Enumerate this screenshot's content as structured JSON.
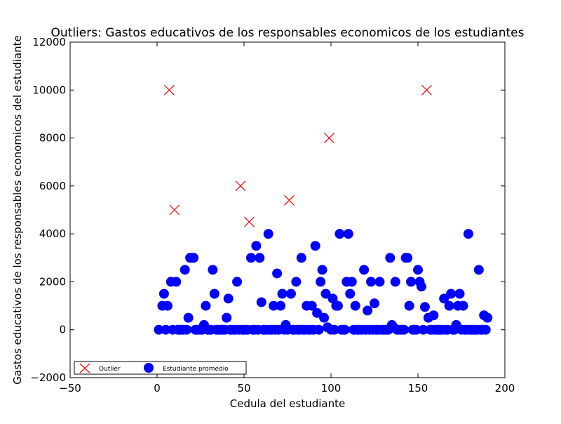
{
  "chart_data": {
    "type": "scatter",
    "title": "Outliers: Gastos educativos de los responsables economicos de los estudiantes",
    "xlabel": "Cedula del estudiante",
    "ylabel": "Gastos educativos de los responsables economicos del estudiante",
    "xlim": [
      -50,
      200
    ],
    "ylim": [
      -2000,
      12000
    ],
    "xticks": [
      -50,
      0,
      50,
      100,
      150,
      200
    ],
    "yticks": [
      -2000,
      0,
      2000,
      4000,
      6000,
      8000,
      10000,
      12000
    ],
    "grid": false,
    "legend_position": "lower-left",
    "series": [
      {
        "name": "Outlier",
        "marker": "x",
        "color": "#ff0000",
        "points": [
          [
            7,
            10000
          ],
          [
            10,
            5000
          ],
          [
            48,
            6000
          ],
          [
            53,
            4500
          ],
          [
            76,
            5400
          ],
          [
            99,
            8000
          ],
          [
            155,
            10000
          ]
        ]
      },
      {
        "name": "Estudiante promedio",
        "marker": "circle",
        "color": "#0000ff",
        "points": [
          [
            1,
            0
          ],
          [
            3,
            1000
          ],
          [
            4,
            1500
          ],
          [
            5,
            0
          ],
          [
            6,
            1000
          ],
          [
            8,
            2000
          ],
          [
            9,
            0
          ],
          [
            11,
            2000
          ],
          [
            12,
            0
          ],
          [
            13,
            0
          ],
          [
            14,
            0
          ],
          [
            15,
            0
          ],
          [
            16,
            2500
          ],
          [
            17,
            0
          ],
          [
            18,
            500
          ],
          [
            19,
            3000
          ],
          [
            20,
            3000
          ],
          [
            21,
            3000
          ],
          [
            22,
            0
          ],
          [
            23,
            0
          ],
          [
            24,
            0
          ],
          [
            25,
            0
          ],
          [
            26,
            0
          ],
          [
            27,
            200
          ],
          [
            28,
            1000
          ],
          [
            29,
            0
          ],
          [
            30,
            0
          ],
          [
            31,
            0
          ],
          [
            32,
            2500
          ],
          [
            33,
            1500
          ],
          [
            34,
            0
          ],
          [
            35,
            0
          ],
          [
            36,
            0
          ],
          [
            37,
            0
          ],
          [
            38,
            0
          ],
          [
            39,
            0
          ],
          [
            40,
            500
          ],
          [
            41,
            1300
          ],
          [
            42,
            0
          ],
          [
            43,
            0
          ],
          [
            44,
            0
          ],
          [
            45,
            0
          ],
          [
            46,
            2000
          ],
          [
            47,
            0
          ],
          [
            49,
            0
          ],
          [
            50,
            0
          ],
          [
            51,
            0
          ],
          [
            52,
            0
          ],
          [
            54,
            3000
          ],
          [
            55,
            0
          ],
          [
            56,
            0
          ],
          [
            57,
            3500
          ],
          [
            58,
            0
          ],
          [
            59,
            3000
          ],
          [
            60,
            1150
          ],
          [
            61,
            0
          ],
          [
            62,
            0
          ],
          [
            63,
            0
          ],
          [
            64,
            4000
          ],
          [
            65,
            0
          ],
          [
            66,
            0
          ],
          [
            67,
            1000
          ],
          [
            68,
            0
          ],
          [
            69,
            2350
          ],
          [
            70,
            0
          ],
          [
            71,
            1000
          ],
          [
            72,
            1500
          ],
          [
            73,
            0
          ],
          [
            74,
            200
          ],
          [
            75,
            0
          ],
          [
            77,
            1500
          ],
          [
            78,
            0
          ],
          [
            79,
            0
          ],
          [
            80,
            2000
          ],
          [
            81,
            0
          ],
          [
            82,
            0
          ],
          [
            83,
            3000
          ],
          [
            84,
            0
          ],
          [
            85,
            0
          ],
          [
            86,
            1000
          ],
          [
            87,
            0
          ],
          [
            88,
            0
          ],
          [
            89,
            1000
          ],
          [
            90,
            0
          ],
          [
            91,
            3500
          ],
          [
            92,
            700
          ],
          [
            93,
            0
          ],
          [
            94,
            2000
          ],
          [
            95,
            2500
          ],
          [
            96,
            500
          ],
          [
            97,
            1500
          ],
          [
            98,
            100
          ],
          [
            100,
            0
          ],
          [
            101,
            1300
          ],
          [
            102,
            0
          ],
          [
            103,
            1000
          ],
          [
            104,
            1000
          ],
          [
            105,
            4000
          ],
          [
            106,
            0
          ],
          [
            107,
            0
          ],
          [
            108,
            0
          ],
          [
            109,
            2000
          ],
          [
            110,
            4000
          ],
          [
            111,
            1500
          ],
          [
            112,
            2000
          ],
          [
            113,
            0
          ],
          [
            114,
            1000
          ],
          [
            115,
            0
          ],
          [
            116,
            0
          ],
          [
            117,
            0
          ],
          [
            118,
            0
          ],
          [
            119,
            2500
          ],
          [
            120,
            0
          ],
          [
            121,
            800
          ],
          [
            122,
            0
          ],
          [
            123,
            2000
          ],
          [
            124,
            0
          ],
          [
            125,
            1100
          ],
          [
            126,
            0
          ],
          [
            127,
            0
          ],
          [
            128,
            2000
          ],
          [
            129,
            0
          ],
          [
            130,
            0
          ],
          [
            131,
            0
          ],
          [
            132,
            0
          ],
          [
            133,
            0
          ],
          [
            134,
            3000
          ],
          [
            135,
            200
          ],
          [
            136,
            100
          ],
          [
            137,
            2000
          ],
          [
            138,
            0
          ],
          [
            139,
            0
          ],
          [
            140,
            0
          ],
          [
            141,
            0
          ],
          [
            142,
            0
          ],
          [
            143,
            3000
          ],
          [
            144,
            3000
          ],
          [
            145,
            1000
          ],
          [
            146,
            2000
          ],
          [
            147,
            0
          ],
          [
            148,
            0
          ],
          [
            149,
            0
          ],
          [
            150,
            2500
          ],
          [
            151,
            2000
          ],
          [
            152,
            1800
          ],
          [
            153,
            0
          ],
          [
            154,
            950
          ],
          [
            156,
            500
          ],
          [
            157,
            0
          ],
          [
            158,
            0
          ],
          [
            159,
            600
          ],
          [
            160,
            0
          ],
          [
            161,
            0
          ],
          [
            162,
            0
          ],
          [
            163,
            0
          ],
          [
            164,
            0
          ],
          [
            165,
            1300
          ],
          [
            166,
            0
          ],
          [
            167,
            0
          ],
          [
            168,
            1000
          ],
          [
            169,
            1500
          ],
          [
            170,
            0
          ],
          [
            171,
            0
          ],
          [
            172,
            200
          ],
          [
            173,
            1000
          ],
          [
            174,
            1500
          ],
          [
            175,
            0
          ],
          [
            176,
            1000
          ],
          [
            177,
            0
          ],
          [
            178,
            0
          ],
          [
            179,
            4000
          ],
          [
            180,
            0
          ],
          [
            181,
            0
          ],
          [
            182,
            0
          ],
          [
            183,
            0
          ],
          [
            184,
            0
          ],
          [
            185,
            2500
          ],
          [
            186,
            0
          ],
          [
            187,
            0
          ],
          [
            188,
            600
          ],
          [
            189,
            0
          ],
          [
            190,
            500
          ]
        ]
      }
    ]
  }
}
